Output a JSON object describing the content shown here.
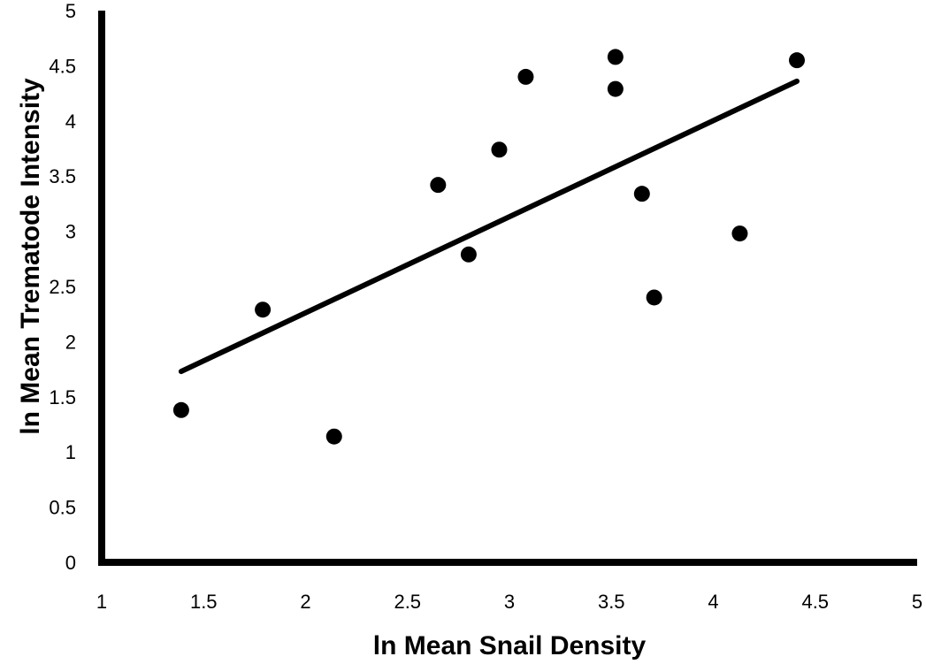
{
  "chart_data": {
    "type": "scatter",
    "xlabel": "ln Mean Snail Density",
    "ylabel": "ln Mean Trematode Intensity",
    "xlim": [
      1,
      5
    ],
    "ylim": [
      0,
      5
    ],
    "xticks": [
      "1",
      "1.5",
      "2",
      "2.5",
      "3",
      "3.5",
      "4",
      "4.5",
      "5"
    ],
    "yticks": [
      "0",
      "0.5",
      "1",
      "1.5",
      "2",
      "2.5",
      "3",
      "3.5",
      "4",
      "4.5",
      "5"
    ],
    "grid": false,
    "legend": "none",
    "point_color": "#000000",
    "points": [
      {
        "x": 1.39,
        "y": 1.38
      },
      {
        "x": 1.79,
        "y": 2.29
      },
      {
        "x": 2.14,
        "y": 1.14
      },
      {
        "x": 2.65,
        "y": 3.42
      },
      {
        "x": 2.8,
        "y": 2.79
      },
      {
        "x": 2.95,
        "y": 3.74
      },
      {
        "x": 3.08,
        "y": 4.4
      },
      {
        "x": 3.52,
        "y": 4.58
      },
      {
        "x": 3.52,
        "y": 4.29
      },
      {
        "x": 3.65,
        "y": 3.34
      },
      {
        "x": 3.71,
        "y": 2.4
      },
      {
        "x": 4.13,
        "y": 2.98
      },
      {
        "x": 4.41,
        "y": 4.55
      }
    ],
    "trendline": {
      "x": [
        1.39,
        4.41
      ],
      "y": [
        1.73,
        4.36
      ]
    }
  }
}
